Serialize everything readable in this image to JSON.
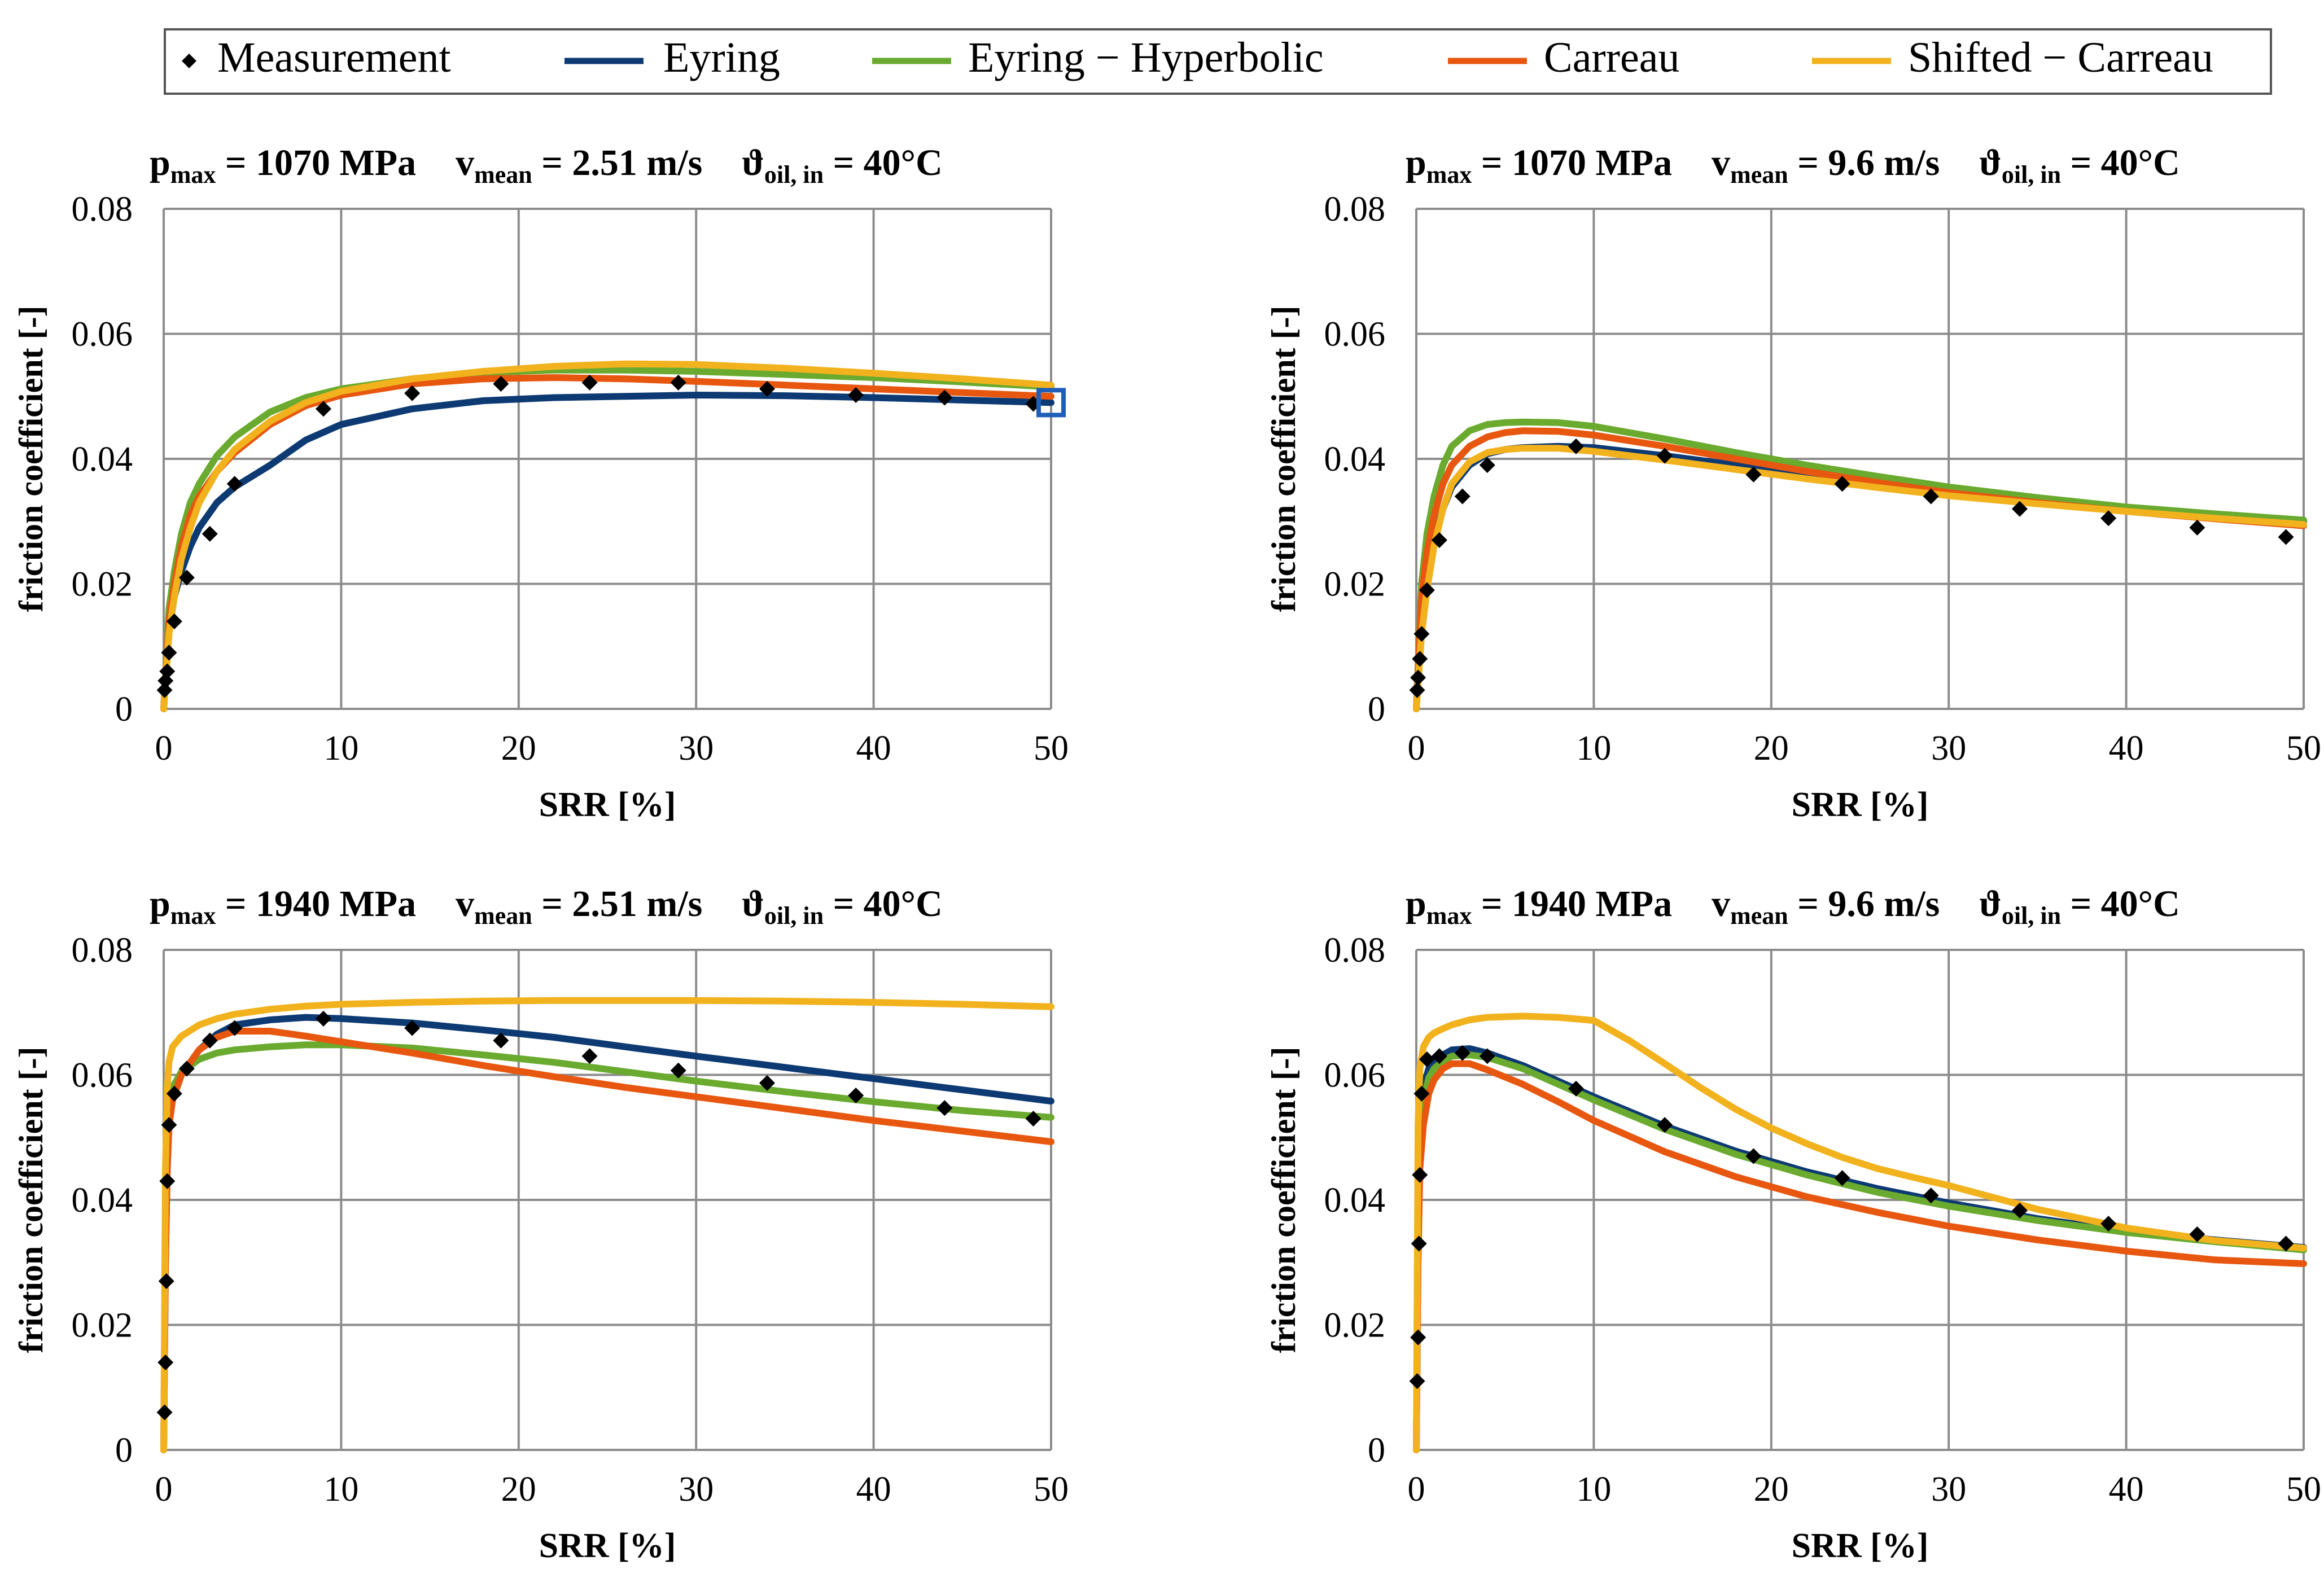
{
  "legend": {
    "items": [
      {
        "label": "Measurement",
        "kind": "marker",
        "color": "#000000"
      },
      {
        "label": "Eyring",
        "kind": "line",
        "color": "#0d3a73"
      },
      {
        "label": "Eyring − Hyperbolic",
        "kind": "line",
        "color": "#6aaa2e"
      },
      {
        "label": "Carreau",
        "kind": "line",
        "color": "#e8570f"
      },
      {
        "label": "Shifted − Carreau",
        "kind": "line",
        "color": "#f2b21e"
      }
    ]
  },
  "colors": {
    "measurement": "#000000",
    "eyring": "#0d3a73",
    "eyring_hyperbolic": "#6aaa2e",
    "carreau": "#e8570f",
    "shifted_carreau": "#f2b21e",
    "grid": "#8c8c8c",
    "highlight": "#1f5fb8"
  },
  "chart_data": [
    {
      "type": "line",
      "title_parts": {
        "p": "p",
        "p_sub": "max",
        "p_val": " = 1070 MPa",
        "v": "v",
        "v_sub": "mean",
        "v_val": " = 2.51 m/s",
        "t": "ϑ",
        "t_sub": "oil, in",
        "t_val": " = 40°C"
      },
      "xlabel": "SRR [%]",
      "ylabel": "friction coefficient [-]",
      "xlim": [
        0,
        50
      ],
      "ylim": [
        0,
        0.08
      ],
      "xticks": [
        "0",
        "10",
        "20",
        "30",
        "40",
        "50"
      ],
      "yticks": [
        "0",
        "0.02",
        "0.04",
        "0.06",
        "0.08"
      ],
      "highlight_point": {
        "x": 50,
        "y": 0.049
      },
      "measurement": {
        "x": [
          0.05,
          0.1,
          0.2,
          0.3,
          0.6,
          1.3,
          2.6,
          4,
          9,
          14,
          19,
          24,
          29,
          34,
          39,
          44,
          49
        ],
        "y": [
          0.003,
          0.0045,
          0.006,
          0.009,
          0.014,
          0.021,
          0.028,
          0.036,
          0.048,
          0.0505,
          0.052,
          0.0522,
          0.0522,
          0.0512,
          0.0502,
          0.0498,
          0.0488
        ]
      },
      "series": [
        {
          "name": "Eyring",
          "x": [
            0,
            0.3,
            0.6,
            1,
            1.5,
            2,
            3,
            4,
            6,
            8,
            10,
            14,
            18,
            22,
            26,
            30,
            35,
            40,
            45,
            50
          ],
          "y": [
            0,
            0.013,
            0.018,
            0.022,
            0.026,
            0.029,
            0.033,
            0.0355,
            0.039,
            0.043,
            0.0455,
            0.048,
            0.0493,
            0.0498,
            0.05,
            0.0502,
            0.0501,
            0.0498,
            0.0494,
            0.049
          ]
        },
        {
          "name": "Eyring − Hyperbolic",
          "x": [
            0,
            0.3,
            0.6,
            1,
            1.5,
            2,
            3,
            4,
            6,
            8,
            10,
            14,
            18,
            22,
            26,
            30,
            35,
            40,
            45,
            50
          ],
          "y": [
            0,
            0.016,
            0.022,
            0.028,
            0.033,
            0.036,
            0.0405,
            0.0435,
            0.0475,
            0.0498,
            0.0512,
            0.0528,
            0.0538,
            0.0542,
            0.0542,
            0.054,
            0.0535,
            0.053,
            0.0523,
            0.0515
          ]
        },
        {
          "name": "Carreau",
          "x": [
            0,
            0.3,
            0.6,
            1,
            1.5,
            2,
            3,
            4,
            6,
            8,
            10,
            14,
            18,
            22,
            26,
            30,
            35,
            40,
            45,
            50
          ],
          "y": [
            0,
            0.014,
            0.02,
            0.026,
            0.031,
            0.034,
            0.038,
            0.041,
            0.0455,
            0.0485,
            0.0502,
            0.052,
            0.0528,
            0.053,
            0.0528,
            0.0524,
            0.0518,
            0.0512,
            0.0506,
            0.05
          ]
        },
        {
          "name": "Shifted − Carreau",
          "x": [
            0,
            0.3,
            0.6,
            1,
            1.5,
            2,
            3,
            4,
            6,
            8,
            10,
            14,
            18,
            22,
            26,
            30,
            35,
            40,
            45,
            50
          ],
          "y": [
            0,
            0.012,
            0.018,
            0.024,
            0.029,
            0.033,
            0.038,
            0.0415,
            0.046,
            0.049,
            0.0508,
            0.0528,
            0.054,
            0.0548,
            0.0552,
            0.0551,
            0.0545,
            0.0537,
            0.0528,
            0.0518
          ]
        }
      ]
    },
    {
      "type": "line",
      "title_parts": {
        "p": "p",
        "p_sub": "max",
        "p_val": " = 1070 MPa",
        "v": "v",
        "v_sub": "mean",
        "v_val": " = 9.6 m/s",
        "t": "ϑ",
        "t_sub": "oil, in",
        "t_val": " = 40°C"
      },
      "xlabel": "SRR [%]",
      "ylabel": "friction coefficient [-]",
      "xlim": [
        0,
        50
      ],
      "ylim": [
        0,
        0.08
      ],
      "xticks": [
        "0",
        "10",
        "20",
        "30",
        "40",
        "50"
      ],
      "yticks": [
        "0",
        "0.02",
        "0.04",
        "0.06",
        "0.08"
      ],
      "measurement": {
        "x": [
          0.05,
          0.1,
          0.2,
          0.3,
          0.6,
          1.3,
          2.6,
          4,
          9,
          14,
          19,
          24,
          29,
          34,
          39,
          44,
          49
        ],
        "y": [
          0.003,
          0.005,
          0.008,
          0.012,
          0.019,
          0.027,
          0.034,
          0.039,
          0.042,
          0.0405,
          0.0375,
          0.036,
          0.034,
          0.032,
          0.0305,
          0.029,
          0.0275
        ]
      },
      "series": [
        {
          "name": "Eyring",
          "x": [
            0,
            0.3,
            0.6,
            1,
            1.5,
            2,
            3,
            4,
            5,
            6,
            8,
            10,
            14,
            18,
            22,
            26,
            30,
            35,
            40,
            45,
            50
          ],
          "y": [
            0,
            0.014,
            0.021,
            0.027,
            0.032,
            0.0355,
            0.039,
            0.0408,
            0.0415,
            0.0418,
            0.042,
            0.0418,
            0.0405,
            0.039,
            0.0375,
            0.036,
            0.0347,
            0.0333,
            0.032,
            0.031,
            0.03
          ]
        },
        {
          "name": "Eyring − Hyperbolic",
          "x": [
            0,
            0.3,
            0.6,
            1,
            1.5,
            2,
            3,
            4,
            5,
            6,
            8,
            10,
            14,
            18,
            22,
            26,
            30,
            35,
            40,
            45,
            50
          ],
          "y": [
            0,
            0.02,
            0.028,
            0.034,
            0.039,
            0.042,
            0.0445,
            0.0455,
            0.0458,
            0.0459,
            0.0458,
            0.0452,
            0.0432,
            0.041,
            0.039,
            0.0372,
            0.0355,
            0.0338,
            0.0323,
            0.0312,
            0.0302
          ]
        },
        {
          "name": "Carreau",
          "x": [
            0,
            0.3,
            0.6,
            1,
            1.5,
            2,
            3,
            4,
            5,
            6,
            8,
            10,
            14,
            18,
            22,
            26,
            30,
            35,
            40,
            45,
            50
          ],
          "y": [
            0,
            0.018,
            0.025,
            0.031,
            0.036,
            0.039,
            0.042,
            0.0435,
            0.0442,
            0.0445,
            0.0444,
            0.0438,
            0.042,
            0.04,
            0.038,
            0.0362,
            0.0346,
            0.033,
            0.0316,
            0.0304,
            0.0293
          ]
        },
        {
          "name": "Shifted − Carreau",
          "x": [
            0,
            0.3,
            0.6,
            1,
            1.5,
            2,
            3,
            4,
            5,
            6,
            8,
            10,
            14,
            18,
            22,
            26,
            30,
            35,
            40,
            45,
            50
          ],
          "y": [
            0,
            0.012,
            0.019,
            0.026,
            0.032,
            0.036,
            0.0395,
            0.041,
            0.0415,
            0.0417,
            0.0417,
            0.0412,
            0.0398,
            0.0383,
            0.0368,
            0.0354,
            0.0341,
            0.0328,
            0.0316,
            0.0305,
            0.0295
          ]
        }
      ]
    },
    {
      "type": "line",
      "title_parts": {
        "p": "p",
        "p_sub": "max",
        "p_val": " = 1940 MPa",
        "v": "v",
        "v_sub": "mean",
        "v_val": " = 2.51 m/s",
        "t": "ϑ",
        "t_sub": "oil, in",
        "t_val": " = 40°C"
      },
      "xlabel": "SRR [%]",
      "ylabel": "friction coefficient [-]",
      "xlim": [
        0,
        50
      ],
      "ylim": [
        0,
        0.08
      ],
      "xticks": [
        "0",
        "10",
        "20",
        "30",
        "40",
        "50"
      ],
      "yticks": [
        "0",
        "0.02",
        "0.04",
        "0.06",
        "0.08"
      ],
      "measurement": {
        "x": [
          0.05,
          0.1,
          0.15,
          0.2,
          0.3,
          0.6,
          1.3,
          2.6,
          4,
          9,
          14,
          19,
          24,
          29,
          34,
          39,
          44,
          49
        ],
        "y": [
          0.006,
          0.014,
          0.027,
          0.043,
          0.052,
          0.057,
          0.061,
          0.0655,
          0.0675,
          0.069,
          0.0675,
          0.0655,
          0.063,
          0.0607,
          0.0587,
          0.0567,
          0.0547,
          0.053
        ]
      },
      "series": [
        {
          "name": "Eyring",
          "x": [
            0,
            0.1,
            0.2,
            0.3,
            0.5,
            1,
            2,
            3,
            4,
            6,
            8,
            10,
            14,
            18,
            22,
            26,
            30,
            35,
            40,
            45,
            50
          ],
          "y": [
            0,
            0.03,
            0.045,
            0.052,
            0.056,
            0.06,
            0.064,
            0.0665,
            0.068,
            0.0688,
            0.0692,
            0.069,
            0.0683,
            0.0672,
            0.066,
            0.0645,
            0.063,
            0.0612,
            0.0594,
            0.0576,
            0.0558
          ]
        },
        {
          "name": "Eyring − Hyperbolic",
          "x": [
            0,
            0.1,
            0.2,
            0.3,
            0.5,
            1,
            2,
            3,
            4,
            6,
            8,
            10,
            14,
            18,
            22,
            26,
            30,
            35,
            40,
            45,
            50
          ],
          "y": [
            0,
            0.035,
            0.05,
            0.055,
            0.058,
            0.0605,
            0.0625,
            0.0635,
            0.064,
            0.0645,
            0.0648,
            0.0648,
            0.0643,
            0.0632,
            0.062,
            0.0605,
            0.059,
            0.0573,
            0.0557,
            0.0543,
            0.0532
          ]
        },
        {
          "name": "Carreau",
          "x": [
            0,
            0.1,
            0.2,
            0.3,
            0.5,
            1,
            2,
            3,
            4,
            6,
            8,
            10,
            14,
            18,
            22,
            26,
            30,
            35,
            40,
            45,
            50
          ],
          "y": [
            0,
            0.03,
            0.045,
            0.052,
            0.056,
            0.06,
            0.064,
            0.066,
            0.067,
            0.067,
            0.0662,
            0.0653,
            0.0635,
            0.0615,
            0.0597,
            0.058,
            0.0565,
            0.0546,
            0.0527,
            0.051,
            0.0493
          ]
        },
        {
          "name": "Shifted − Carreau",
          "x": [
            0,
            0.1,
            0.2,
            0.3,
            0.5,
            1,
            2,
            3,
            4,
            6,
            8,
            10,
            14,
            18,
            22,
            26,
            30,
            35,
            40,
            45,
            50
          ],
          "y": [
            0,
            0.045,
            0.058,
            0.062,
            0.0645,
            0.0662,
            0.068,
            0.069,
            0.0697,
            0.0705,
            0.071,
            0.0713,
            0.0716,
            0.0718,
            0.0719,
            0.0719,
            0.0719,
            0.0718,
            0.0716,
            0.0713,
            0.0709
          ]
        }
      ]
    },
    {
      "type": "line",
      "title_parts": {
        "p": "p",
        "p_sub": "max",
        "p_val": " = 1940 MPa",
        "v": "v",
        "v_sub": "mean",
        "v_val": " = 9.6 m/s",
        "t": "ϑ",
        "t_sub": "oil, in",
        "t_val": " = 40°C"
      },
      "xlabel": "SRR [%]",
      "ylabel": "friction coefficient [-]",
      "xlim": [
        0,
        50
      ],
      "ylim": [
        0,
        0.08
      ],
      "xticks": [
        "0",
        "10",
        "20",
        "30",
        "40",
        "50"
      ],
      "yticks": [
        "0",
        "0.02",
        "0.04",
        "0.06",
        "0.08"
      ],
      "measurement": {
        "x": [
          0.05,
          0.1,
          0.15,
          0.2,
          0.3,
          0.6,
          1.3,
          2.6,
          4,
          9,
          14,
          19,
          24,
          29,
          34,
          39,
          44,
          49
        ],
        "y": [
          0.011,
          0.018,
          0.033,
          0.044,
          0.057,
          0.0625,
          0.063,
          0.0635,
          0.063,
          0.0578,
          0.052,
          0.047,
          0.0435,
          0.0407,
          0.0383,
          0.0362,
          0.0345,
          0.033
        ]
      },
      "series": [
        {
          "name": "Eyring",
          "x": [
            0,
            0.1,
            0.2,
            0.4,
            0.7,
            1,
            1.5,
            2,
            3,
            4,
            6,
            8,
            10,
            14,
            18,
            22,
            26,
            30,
            35,
            40,
            45,
            50
          ],
          "y": [
            0,
            0.035,
            0.052,
            0.058,
            0.061,
            0.062,
            0.0632,
            0.064,
            0.0642,
            0.0635,
            0.0615,
            0.059,
            0.0565,
            0.0518,
            0.0478,
            0.0445,
            0.0418,
            0.0395,
            0.037,
            0.035,
            0.0336,
            0.0324
          ]
        },
        {
          "name": "Eyring − Hyperbolic",
          "x": [
            0,
            0.1,
            0.2,
            0.4,
            0.7,
            1,
            1.5,
            2,
            3,
            4,
            6,
            8,
            10,
            14,
            18,
            22,
            26,
            30,
            35,
            40,
            45,
            50
          ],
          "y": [
            0,
            0.035,
            0.05,
            0.056,
            0.0595,
            0.061,
            0.0622,
            0.063,
            0.0632,
            0.0628,
            0.061,
            0.0585,
            0.056,
            0.0513,
            0.0473,
            0.044,
            0.0412,
            0.039,
            0.0367,
            0.0348,
            0.0333,
            0.032
          ]
        },
        {
          "name": "Carreau",
          "x": [
            0,
            0.1,
            0.2,
            0.4,
            0.7,
            1,
            1.5,
            2,
            3,
            4,
            6,
            8,
            10,
            14,
            18,
            22,
            26,
            30,
            35,
            40,
            45,
            50
          ],
          "y": [
            0,
            0.03,
            0.045,
            0.052,
            0.057,
            0.0592,
            0.061,
            0.0618,
            0.0618,
            0.0608,
            0.0585,
            0.0557,
            0.0527,
            0.0477,
            0.0437,
            0.0405,
            0.038,
            0.0358,
            0.0336,
            0.0318,
            0.0304,
            0.0298
          ]
        },
        {
          "name": "Shifted − Carreau",
          "x": [
            0,
            0.1,
            0.2,
            0.4,
            0.7,
            1,
            1.5,
            2,
            3,
            4,
            6,
            8,
            10,
            12,
            14,
            16,
            18,
            20,
            22,
            24,
            26,
            28,
            30,
            35,
            40,
            45,
            50
          ],
          "y": [
            0,
            0.052,
            0.061,
            0.0645,
            0.066,
            0.0667,
            0.0674,
            0.068,
            0.0688,
            0.0692,
            0.0694,
            0.0692,
            0.0687,
            0.0655,
            0.0618,
            0.058,
            0.0545,
            0.0515,
            0.049,
            0.0468,
            0.045,
            0.0436,
            0.0423,
            0.0385,
            0.0355,
            0.0335,
            0.0323
          ]
        }
      ]
    }
  ]
}
